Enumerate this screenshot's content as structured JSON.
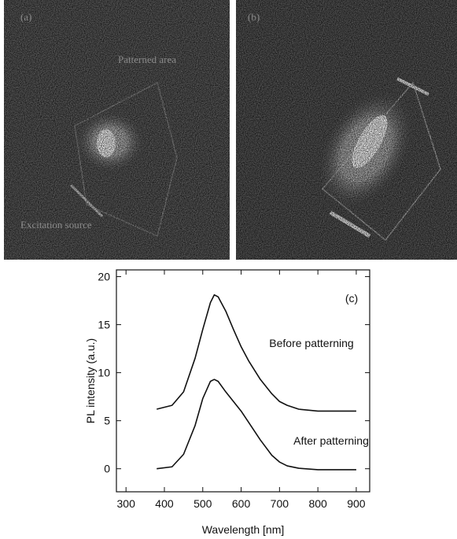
{
  "panels": [
    {
      "label": "(a)",
      "annotations": [
        "Patterned area",
        "Excitation source"
      ]
    },
    {
      "label": "(b)"
    }
  ],
  "chart_data": {
    "type": "line",
    "panel_label": "(c)",
    "xlabel": "Wavelength [nm]",
    "ylabel": "PL intensity (a.u.)",
    "x": [
      380,
      420,
      450,
      480,
      500,
      520,
      530,
      540,
      560,
      580,
      600,
      620,
      650,
      680,
      700,
      720,
      750,
      800,
      850,
      900
    ],
    "series": [
      {
        "name": "Before patterning",
        "color": "#111111",
        "values": [
          6.2,
          6.6,
          8.0,
          11.5,
          14.5,
          17.3,
          18.1,
          17.9,
          16.4,
          14.5,
          12.7,
          11.2,
          9.3,
          7.8,
          7.0,
          6.6,
          6.2,
          6.0,
          6.0,
          6.0
        ]
      },
      {
        "name": "After patterning",
        "color": "#111111",
        "values": [
          0,
          0.2,
          1.5,
          4.5,
          7.3,
          9.1,
          9.3,
          9.1,
          8.0,
          7.0,
          6.0,
          4.8,
          3.0,
          1.4,
          0.7,
          0.3,
          0.05,
          -0.1,
          -0.1,
          -0.1
        ]
      }
    ],
    "xlim": [
      275,
      935
    ],
    "ylim": [
      -2.4,
      20.7
    ],
    "xticks": [
      300,
      400,
      500,
      600,
      700,
      800,
      900
    ],
    "yticks": [
      0,
      5,
      10,
      15,
      20
    ]
  }
}
